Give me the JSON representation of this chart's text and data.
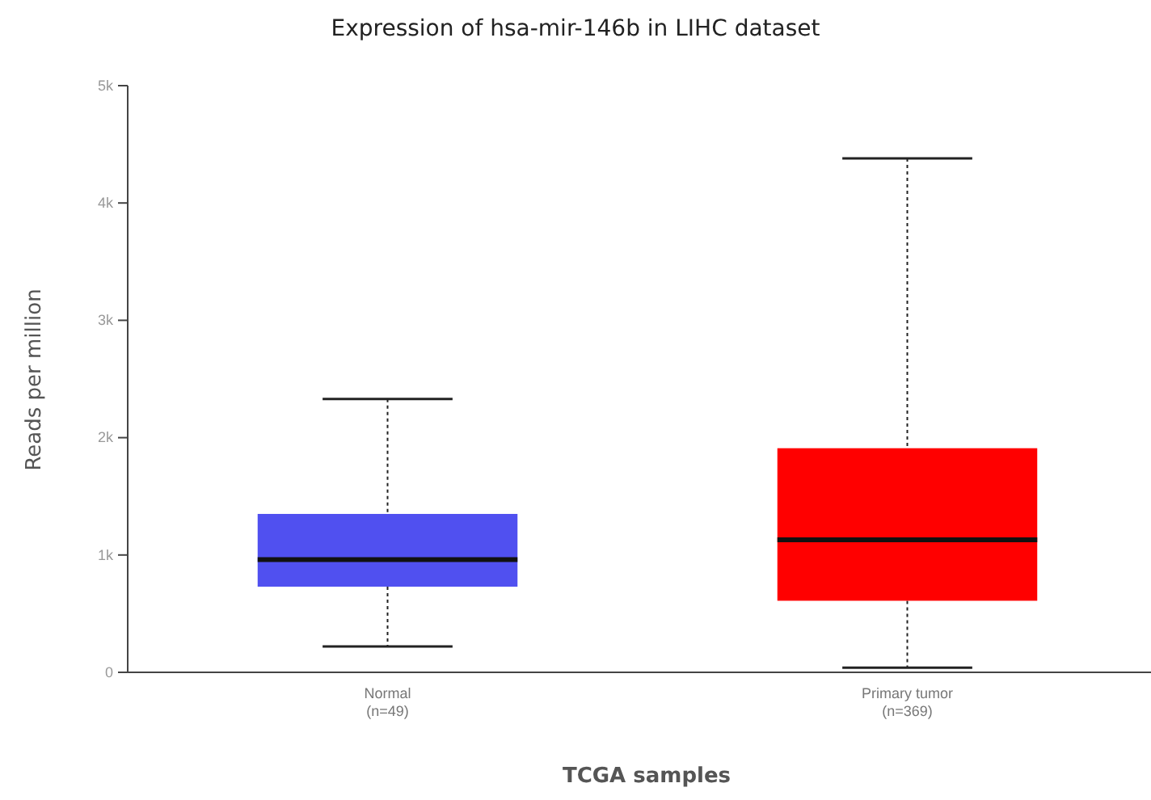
{
  "chart_data": {
    "type": "box",
    "title": "Expression of hsa-mir-146b in LIHC dataset",
    "xlabel": "TCGA samples",
    "ylabel": "Reads per million",
    "categories": [
      "Normal\n(n=49)",
      "Primary tumor\n(n=369)"
    ],
    "colors": [
      "#5050f0",
      "#ff0000"
    ],
    "boxes": [
      {
        "low": 220,
        "q1": 730,
        "median": 960,
        "q3": 1350,
        "high": 2330
      },
      {
        "low": 40,
        "q1": 610,
        "median": 1130,
        "q3": 1910,
        "high": 4380
      }
    ],
    "ylim": [
      0,
      5000
    ],
    "yticks": [
      0,
      {
        "value": 1000,
        "label": "1k"
      },
      {
        "value": 2000,
        "label": "2k"
      },
      {
        "value": 3000,
        "label": "3k"
      },
      {
        "value": 4000,
        "label": "4k"
      },
      {
        "value": 5000,
        "label": "5k"
      }
    ],
    "grid": false
  }
}
